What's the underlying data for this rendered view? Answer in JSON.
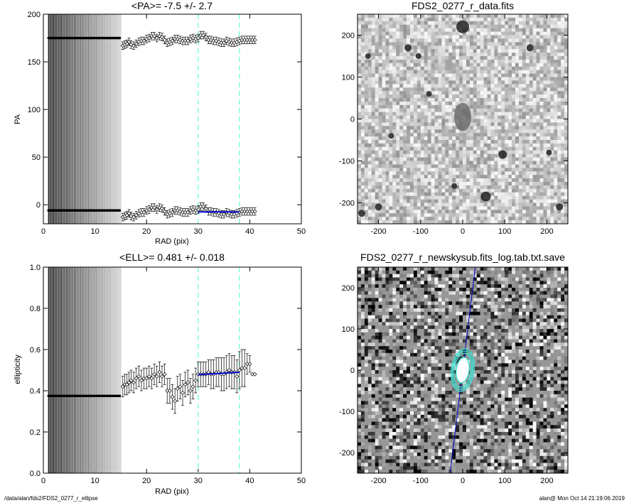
{
  "chart_data": [
    {
      "type": "scatter",
      "title": "<PA>=  -7.5 +/-   2.7",
      "xlabel": "RAD (pix)",
      "ylabel": "PA",
      "xlim": [
        0,
        50
      ],
      "ylim": [
        -20,
        200
      ],
      "xticks": [
        0,
        10,
        20,
        30,
        40,
        50
      ],
      "yticks": [
        0,
        50,
        100,
        150,
        200
      ],
      "vlines": [
        30,
        38
      ],
      "grid": false,
      "series": [
        {
          "x": [
            15.4,
            15.8,
            16.2,
            16.6,
            17.0,
            17.5,
            18.0,
            18.5,
            19.0,
            19.5,
            20.0,
            20.5,
            21.0,
            21.5,
            22.0,
            22.5,
            23.0,
            23.5,
            24.0,
            24.5,
            25.0,
            25.5,
            26.0,
            26.5,
            27.0,
            27.5,
            28.0,
            28.5,
            29.0,
            29.5,
            30.0,
            30.5,
            31.0,
            31.5,
            32.0,
            32.5,
            33.0,
            33.5,
            34.0,
            34.5,
            35.0,
            35.5,
            36.0,
            36.5,
            37.0,
            37.5,
            38.0,
            38.5,
            39.0,
            39.5,
            40.0,
            40.5,
            41.0
          ],
          "y": [
            167,
            168,
            169,
            171,
            168,
            167,
            169,
            171,
            172,
            172,
            174,
            175,
            177,
            177,
            175,
            177,
            176,
            173,
            170,
            171,
            172,
            174,
            174,
            173,
            172,
            172,
            172,
            174,
            175,
            174,
            175,
            178,
            178,
            176,
            173,
            173,
            172,
            172,
            171,
            170,
            170,
            172,
            171,
            170,
            170,
            171,
            172,
            173,
            173,
            173,
            173,
            173,
            173
          ],
          "err": [
            4,
            4,
            4,
            4,
            4,
            4,
            4,
            4,
            4,
            4,
            4,
            4,
            4,
            4,
            4,
            4,
            4,
            4,
            4,
            4,
            4,
            4,
            4,
            4,
            4,
            4,
            4,
            4,
            4,
            4,
            4,
            4,
            4,
            4,
            4,
            4,
            4,
            4,
            4,
            4,
            4,
            4,
            4,
            4,
            4,
            4,
            4,
            4,
            4,
            4,
            4,
            4,
            4
          ]
        },
        {
          "x": [
            15.4,
            15.8,
            16.2,
            16.6,
            17.0,
            17.5,
            18.0,
            18.5,
            19.0,
            19.5,
            20.0,
            20.5,
            21.0,
            21.5,
            22.0,
            22.5,
            23.0,
            23.5,
            24.0,
            24.5,
            25.0,
            25.5,
            26.0,
            26.5,
            27.0,
            27.5,
            28.0,
            28.5,
            29.0,
            29.5,
            30.0,
            30.5,
            31.0,
            31.5,
            32.0,
            32.5,
            33.0,
            33.5,
            34.0,
            34.5,
            35.0,
            35.5,
            36.0,
            36.5,
            37.0,
            37.5,
            38.0,
            38.5,
            39.0,
            39.5,
            40.0,
            40.5,
            41.0
          ],
          "y": [
            -13,
            -12,
            -11,
            -9,
            -12,
            -13,
            -11,
            -9,
            -8,
            -8,
            -6,
            -5,
            -3,
            -3,
            -5,
            -3,
            -4,
            -7,
            -10,
            -9,
            -8,
            -6,
            -6,
            -7,
            -8,
            -8,
            -8,
            -6,
            -5,
            -6,
            -5,
            -2,
            -2,
            -4,
            -7,
            -7,
            -8,
            -8,
            -9,
            -10,
            -10,
            -8,
            -9,
            -10,
            -10,
            -9,
            -8,
            -7,
            -7,
            -7,
            -7,
            -7,
            -7
          ],
          "err": [
            4,
            4,
            4,
            4,
            4,
            4,
            4,
            4,
            4,
            4,
            4,
            4,
            4,
            4,
            4,
            4,
            4,
            4,
            4,
            4,
            4,
            4,
            4,
            4,
            4,
            4,
            4,
            4,
            4,
            4,
            4,
            4,
            4,
            4,
            4,
            4,
            4,
            4,
            4,
            4,
            4,
            4,
            4,
            4,
            4,
            4,
            4,
            4,
            4,
            4,
            4,
            4,
            4
          ]
        }
      ],
      "inner_points_y": [
        175,
        -6
      ],
      "inner_range": [
        1,
        15
      ],
      "fit_segments": [
        {
          "x": [
            30,
            38
          ],
          "y": [
            -7.5,
            -7.5
          ]
        }
      ]
    },
    {
      "type": "heatmap",
      "title": "FDS2_0277_r_data.fits",
      "xlim": [
        -250,
        250
      ],
      "ylim": [
        -250,
        250
      ],
      "xticks": [
        -200,
        -100,
        0,
        100,
        200
      ],
      "yticks": [
        -200,
        -100,
        0,
        100,
        200
      ]
    },
    {
      "type": "scatter",
      "title": "<ELL>= 0.481 +/-  0.018",
      "xlabel": "RAD (pix)",
      "ylabel": "ellipticity",
      "xlim": [
        0,
        50
      ],
      "ylim": [
        0,
        1
      ],
      "xticks": [
        0,
        10,
        20,
        30,
        40,
        50
      ],
      "yticks": [
        0.0,
        0.2,
        0.4,
        0.6,
        0.8,
        1.0
      ],
      "vlines": [
        30,
        38
      ],
      "grid": false,
      "series": [
        {
          "x": [
            15.4,
            15.8,
            16.2,
            16.6,
            17.0,
            17.5,
            18.0,
            18.5,
            19.0,
            19.5,
            20.0,
            20.5,
            21.0,
            21.5,
            22.0,
            22.5,
            23.0,
            23.5,
            24.0,
            24.5,
            25.0,
            25.5,
            26.0,
            26.5,
            27.0,
            27.5,
            28.0,
            28.5,
            29.0,
            29.5,
            30.0,
            30.5,
            31.0,
            31.5,
            32.0,
            32.5,
            33.0,
            33.5,
            34.0,
            34.5,
            35.0,
            35.5,
            36.0,
            36.5,
            37.0,
            37.5,
            38.0,
            38.5,
            39.0,
            39.5,
            40.0,
            40.5,
            41.0
          ],
          "y": [
            0.42,
            0.43,
            0.43,
            0.44,
            0.45,
            0.44,
            0.46,
            0.47,
            0.45,
            0.46,
            0.46,
            0.47,
            0.46,
            0.48,
            0.47,
            0.49,
            0.47,
            0.48,
            0.4,
            0.4,
            0.37,
            0.35,
            0.41,
            0.42,
            0.39,
            0.43,
            0.44,
            0.4,
            0.42,
            0.45,
            0.48,
            0.48,
            0.48,
            0.48,
            0.49,
            0.48,
            0.48,
            0.49,
            0.49,
            0.48,
            0.48,
            0.49,
            0.5,
            0.49,
            0.49,
            0.47,
            0.5,
            0.51,
            0.51,
            0.53,
            0.53,
            0.48,
            0.48
          ],
          "err": [
            0.05,
            0.05,
            0.05,
            0.05,
            0.05,
            0.05,
            0.05,
            0.05,
            0.05,
            0.05,
            0.05,
            0.05,
            0.05,
            0.05,
            0.05,
            0.05,
            0.05,
            0.05,
            0.06,
            0.06,
            0.06,
            0.06,
            0.06,
            0.06,
            0.06,
            0.06,
            0.06,
            0.06,
            0.06,
            0.06,
            0.06,
            0.06,
            0.06,
            0.06,
            0.06,
            0.07,
            0.07,
            0.07,
            0.07,
            0.08,
            0.08,
            0.08,
            0.08,
            0.08,
            0.08,
            0.08,
            0.09,
            0.09,
            0.09,
            0.05,
            0.04,
            0.0,
            0.0
          ]
        }
      ],
      "inner_points_y": [
        0.375
      ],
      "inner_range": [
        1,
        15
      ],
      "fit_segments": [
        {
          "x": [
            30,
            38
          ],
          "y": [
            0.478,
            0.49
          ]
        }
      ]
    },
    {
      "type": "heatmap",
      "title": "FDS2_0277_r_newskysub.fits_log.tab.txt.save",
      "xlim": [
        -250,
        250
      ],
      "ylim": [
        -250,
        250
      ],
      "xticks": [
        -200,
        -100,
        0,
        100,
        200
      ],
      "yticks": [
        -200,
        -100,
        0,
        100,
        200
      ]
    }
  ],
  "footer": {
    "left": "/data/alan/fds2/FDS2_0277_r_ellipse",
    "right": "alan@  Mon Oct 14 21:19:06 2019"
  },
  "colors": {
    "points": "#000000",
    "fit": "#0000cc",
    "vline": "#7fffd4",
    "contour": "#40e0d0"
  }
}
